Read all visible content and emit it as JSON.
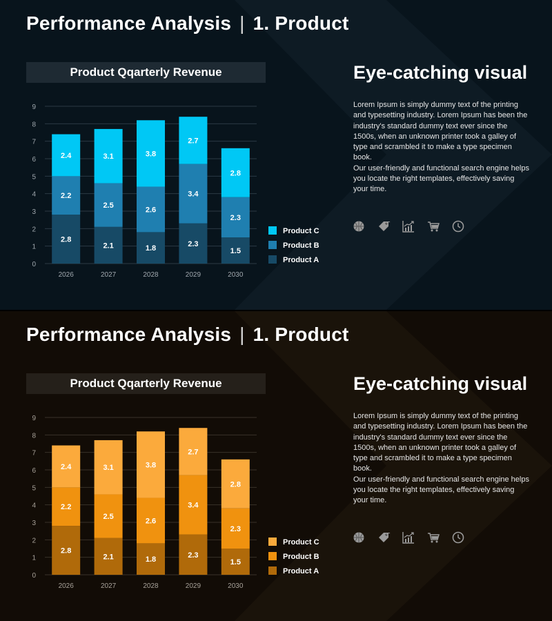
{
  "slides": [
    {
      "theme": "blue",
      "title_main": "Performance Analysis",
      "title_sub": "1. Product",
      "chart_title": "Product Qqarterly Revenue",
      "heading": "Eye-catching visual",
      "paragraph1": "Lorem Ipsum is simply dummy text of the printing and typesetting industry. Lorem Ipsum has been the industry's standard dummy text ever since the 1500s, when an unknown printer took a galley of type and scrambled it to make a type specimen book.",
      "paragraph2": "Our user-friendly and functional search engine helps you locate the right templates, effectively saving your time.",
      "icons": [
        "basketball-icon",
        "price-tag-icon",
        "growth-chart-icon",
        "shopping-cart-icon",
        "clock-icon"
      ],
      "colors": {
        "product_a": "#174a66",
        "product_b": "#1f7fb0",
        "product_c": "#00c8f5",
        "grid": "#2b3a44",
        "axis_text": "#a0a8ae",
        "label": "#ffffff"
      }
    },
    {
      "theme": "orange",
      "title_main": "Performance Analysis",
      "title_sub": "1. Product",
      "chart_title": "Product Qqarterly Revenue",
      "heading": "Eye-catching visual",
      "paragraph1": "Lorem Ipsum is simply dummy text of the printing and typesetting industry. Lorem Ipsum has been the industry's standard dummy text ever since the 1500s, when an unknown printer took a galley of type and scrambled it to make a type specimen book.",
      "paragraph2": "Our user-friendly and functional search engine helps you locate the right templates, effectively saving your time.",
      "icons": [
        "basketball-icon",
        "price-tag-icon",
        "growth-chart-icon",
        "shopping-cart-icon",
        "clock-icon"
      ],
      "colors": {
        "product_a": "#b06a0a",
        "product_b": "#f0920f",
        "product_c": "#fbaa3c",
        "grid": "#3a3229",
        "axis_text": "#a8a299",
        "label": "#ffffff"
      }
    }
  ],
  "chart_data": [
    {
      "type": "bar",
      "stacked": true,
      "title": "Product Qqarterly Revenue",
      "categories": [
        "2026",
        "2027",
        "2028",
        "2029",
        "2030"
      ],
      "series": [
        {
          "name": "Product A",
          "values": [
            2.8,
            2.1,
            1.8,
            2.3,
            1.5
          ]
        },
        {
          "name": "Product B",
          "values": [
            2.2,
            2.5,
            2.6,
            3.4,
            2.3
          ]
        },
        {
          "name": "Product C",
          "values": [
            2.4,
            3.1,
            3.8,
            2.7,
            2.8
          ]
        }
      ],
      "ylim": [
        0,
        9
      ],
      "yticks": [
        0,
        1,
        2,
        3,
        4,
        5,
        6,
        7,
        8,
        9
      ],
      "grid": true,
      "legend": "right"
    },
    {
      "type": "bar",
      "stacked": true,
      "title": "Product Qqarterly Revenue",
      "categories": [
        "2026",
        "2027",
        "2028",
        "2029",
        "2030"
      ],
      "series": [
        {
          "name": "Product A",
          "values": [
            2.8,
            2.1,
            1.8,
            2.3,
            1.5
          ]
        },
        {
          "name": "Product B",
          "values": [
            2.2,
            2.5,
            2.6,
            3.4,
            2.3
          ]
        },
        {
          "name": "Product C",
          "values": [
            2.4,
            3.1,
            3.8,
            2.7,
            2.8
          ]
        }
      ],
      "ylim": [
        0,
        9
      ],
      "yticks": [
        0,
        1,
        2,
        3,
        4,
        5,
        6,
        7,
        8,
        9
      ],
      "grid": true,
      "legend": "right"
    }
  ]
}
